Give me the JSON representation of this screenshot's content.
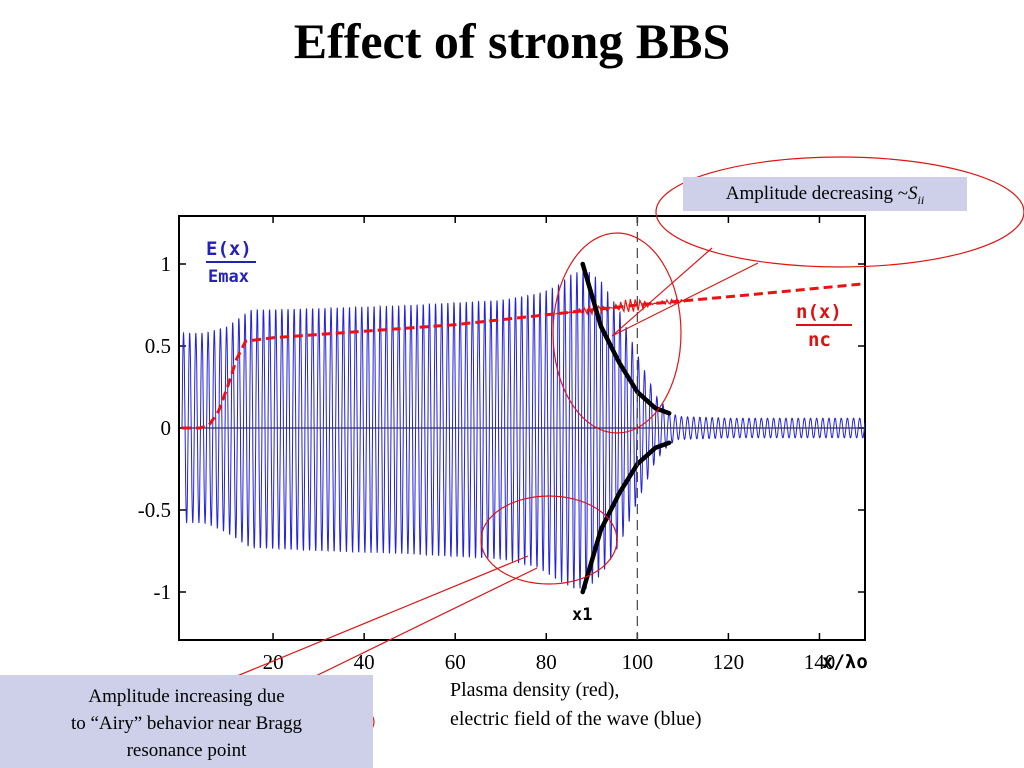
{
  "slide": {
    "title": "Effect of strong BBS"
  },
  "annotations": {
    "top_box_text": "Amplitude decreasing ~",
    "top_box_symbol": "S",
    "top_box_subscript": "ii",
    "bottom_box_lines": [
      "Amplitude increasing due",
      "to “Airy” behavior near Bragg",
      "resonance point"
    ],
    "caption_lines": [
      "Plasma density (red),",
      "electric field of the wave (blue)"
    ]
  },
  "colors": {
    "field": "#2222dd",
    "density": "#ee1111",
    "envelope": "#000000",
    "highlight": "#e01515",
    "box_fill": "#cdd0e8"
  },
  "chart_data": {
    "type": "line",
    "title": "",
    "xlabel": "x/λo",
    "ylabel_top": "E(x)",
    "ylabel_bottom": "Emax",
    "density_label_top": "n(x)",
    "density_label_bottom": "nc",
    "marker_label": "x1",
    "xlim": [
      0,
      150
    ],
    "ylim": [
      -1.3,
      1.3
    ],
    "x_ticks": [
      20,
      40,
      60,
      80,
      100,
      120,
      140
    ],
    "y_ticks": [
      1,
      0.5,
      0,
      -0.5,
      -1
    ],
    "x_tick_labels": [
      "20",
      "40",
      "60",
      "80",
      "100",
      "120",
      "140"
    ],
    "y_tick_labels": [
      "1",
      "0.5",
      "0",
      "-0.5",
      "-1"
    ],
    "marker_x": 100,
    "series": [
      {
        "kind": "field_envelope",
        "x": [
          0,
          5,
          10,
          15,
          30,
          50,
          70,
          78,
          82,
          86,
          89,
          92,
          96,
          100,
          104,
          107,
          109,
          120,
          150
        ],
        "top": [
          0.58,
          0.58,
          0.62,
          0.72,
          0.73,
          0.75,
          0.78,
          0.82,
          0.86,
          0.95,
          0.96,
          0.9,
          0.72,
          0.45,
          0.2,
          0.1,
          0.07,
          0.06,
          0.06
        ],
        "bottom": [
          -0.58,
          -0.58,
          -0.64,
          -0.73,
          -0.75,
          -0.77,
          -0.8,
          -0.85,
          -0.92,
          -0.98,
          -0.98,
          -0.9,
          -0.72,
          -0.45,
          -0.2,
          -0.1,
          -0.07,
          -0.06,
          -0.06
        ]
      },
      {
        "kind": "density",
        "x": [
          0,
          4,
          6,
          8,
          10,
          12,
          14,
          20,
          40,
          60,
          80,
          100,
          120,
          150
        ],
        "y": [
          0,
          0,
          0.02,
          0.1,
          0.25,
          0.42,
          0.53,
          0.55,
          0.59,
          0.63,
          0.69,
          0.75,
          0.8,
          0.88
        ]
      },
      {
        "kind": "upper_envelope_fit",
        "x": [
          88,
          92,
          96,
          100,
          104,
          107
        ],
        "y": [
          1.0,
          0.62,
          0.4,
          0.22,
          0.12,
          0.09
        ]
      },
      {
        "kind": "lower_envelope_fit",
        "x": [
          88,
          92,
          96,
          100,
          104,
          107
        ],
        "y": [
          -1.0,
          -0.62,
          -0.4,
          -0.22,
          -0.12,
          -0.09
        ]
      }
    ],
    "grid": false
  }
}
